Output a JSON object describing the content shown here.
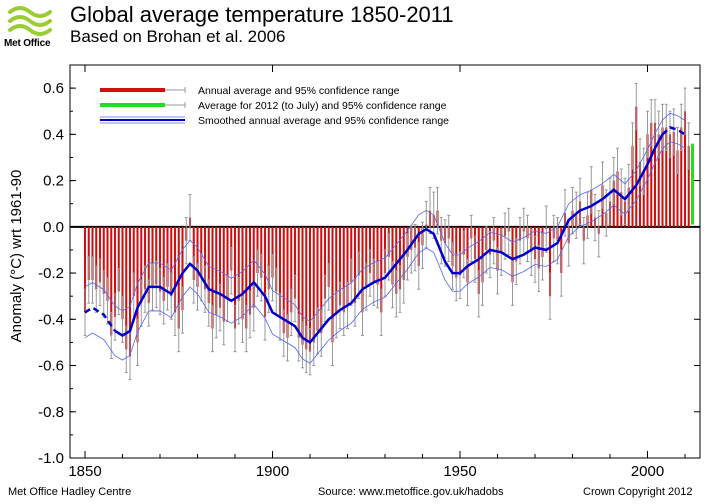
{
  "header": {
    "logo_text": "Met Office",
    "title": "Global average temperature 1850-2011",
    "subtitle": "Based on Brohan et al. 2006"
  },
  "footer": {
    "left": "Met Office Hadley Centre",
    "center": "Source: www.metoffice.gov.uk/hadobs",
    "right": "Crown Copyright 2012"
  },
  "colors": {
    "annual_bar": "#d01010",
    "annual_2012": "#22dd22",
    "smoothed": "#0000cc",
    "smoothed_band": "#5566ee",
    "error_bar": "#999999",
    "logo_green": "#9acd32"
  },
  "chart_data": {
    "type": "bar",
    "title": "Global average temperature 1850-2011",
    "subtitle": "Based on Brohan et al. 2006",
    "ylabel": "Anomaly (°C) wrt 1961-90",
    "xlabel": "",
    "xlim": [
      1846,
      2014
    ],
    "ylim": [
      -1.0,
      0.7
    ],
    "xticks": [
      1850,
      1900,
      1950,
      2000
    ],
    "yticks": [
      -1.0,
      -0.8,
      -0.6,
      -0.4,
      -0.2,
      0.0,
      0.2,
      0.4,
      0.6
    ],
    "ytick_labels": [
      "-1.0",
      "-0.8",
      "-0.6",
      "-0.4",
      "-0.2",
      "0.0",
      "0.2",
      "0.4",
      "0.6"
    ],
    "legend": {
      "placement": "top-left",
      "entries": [
        "Annual average and 95% confidence range",
        "Average for 2012 (to July) and 95% confidence range",
        "Smoothed annual average and 95% confidence range"
      ]
    },
    "annual": {
      "name": "Annual average and 95% confidence range",
      "start_year": 1850,
      "values": [
        -0.37,
        -0.23,
        -0.23,
        -0.27,
        -0.24,
        -0.29,
        -0.32,
        -0.47,
        -0.39,
        -0.28,
        -0.4,
        -0.53,
        -0.56,
        -0.3,
        -0.5,
        -0.33,
        -0.27,
        -0.33,
        -0.26,
        -0.25,
        -0.28,
        -0.32,
        -0.26,
        -0.3,
        -0.37,
        -0.44,
        -0.36,
        -0.06,
        0.04,
        -0.23,
        -0.26,
        -0.22,
        -0.27,
        -0.33,
        -0.44,
        -0.38,
        -0.35,
        -0.41,
        -0.31,
        -0.19,
        -0.44,
        -0.32,
        -0.4,
        -0.44,
        -0.38,
        -0.35,
        -0.2,
        -0.22,
        -0.39,
        -0.27,
        -0.22,
        -0.28,
        -0.39,
        -0.46,
        -0.48,
        -0.37,
        -0.31,
        -0.48,
        -0.51,
        -0.53,
        -0.54,
        -0.5,
        -0.45,
        -0.46,
        -0.31,
        -0.26,
        -0.5,
        -0.38,
        -0.34,
        -0.37,
        -0.34,
        -0.24,
        -0.33,
        -0.21,
        -0.37,
        -0.26,
        -0.2,
        -0.24,
        -0.25,
        -0.37,
        -0.2,
        -0.13,
        -0.25,
        -0.29,
        -0.27,
        -0.23,
        -0.13,
        -0.1,
        -0.09,
        -0.17,
        -0.08,
        0.01,
        0.07,
        0.05,
        0.07,
        -0.06,
        -0.07,
        -0.05,
        -0.17,
        -0.22,
        -0.21,
        -0.12,
        -0.24,
        -0.05,
        -0.14,
        -0.29,
        -0.24,
        -0.1,
        -0.12,
        -0.06,
        -0.19,
        -0.11,
        -0.04,
        -0.02,
        -0.24,
        -0.15,
        -0.06,
        -0.02,
        -0.05,
        -0.11,
        -0.14,
        -0.18,
        -0.13,
        -0.01,
        -0.3,
        -0.05,
        -0.06,
        -0.2,
        0.06,
        -0.07,
        0.07,
        0.05,
        0.11,
        -0.06,
        0.05,
        0.16,
        0.04,
        -0.03,
        0.18,
        0.06,
        0.11,
        0.2,
        0.24,
        0.15,
        0.11,
        0.17,
        0.35,
        0.52,
        0.28,
        0.24,
        0.4,
        0.45,
        0.45,
        0.4,
        0.43,
        0.43,
        0.4,
        0.41,
        0.33,
        0.43,
        0.5,
        0.35
      ],
      "uncertainty": 0.1
    },
    "partial_2012": {
      "name": "Average for 2012 (to July) and 95% confidence range",
      "year": 2012,
      "value": 0.35,
      "ci": [
        0.01,
        0.36
      ]
    },
    "smoothed": {
      "name": "Smoothed annual average and 95% confidence range",
      "x": [
        1850,
        1852,
        1855,
        1858,
        1860,
        1862,
        1864,
        1867,
        1870,
        1873,
        1876,
        1878,
        1880,
        1883,
        1886,
        1889,
        1892,
        1895,
        1898,
        1900,
        1903,
        1906,
        1908,
        1910,
        1912,
        1915,
        1918,
        1921,
        1924,
        1927,
        1930,
        1933,
        1936,
        1939,
        1941,
        1943,
        1946,
        1948,
        1950,
        1952,
        1955,
        1958,
        1961,
        1964,
        1967,
        1970,
        1973,
        1976,
        1979,
        1982,
        1985,
        1988,
        1991,
        1994,
        1997,
        2000,
        2002,
        2004,
        2006,
        2008,
        2010
      ],
      "y": [
        -0.37,
        -0.35,
        -0.38,
        -0.45,
        -0.47,
        -0.45,
        -0.35,
        -0.26,
        -0.26,
        -0.29,
        -0.2,
        -0.16,
        -0.19,
        -0.27,
        -0.29,
        -0.32,
        -0.29,
        -0.24,
        -0.3,
        -0.37,
        -0.4,
        -0.43,
        -0.48,
        -0.5,
        -0.46,
        -0.4,
        -0.36,
        -0.33,
        -0.27,
        -0.24,
        -0.22,
        -0.16,
        -0.1,
        -0.03,
        -0.01,
        -0.03,
        -0.15,
        -0.2,
        -0.2,
        -0.17,
        -0.14,
        -0.1,
        -0.11,
        -0.14,
        -0.12,
        -0.09,
        -0.1,
        -0.07,
        0.03,
        0.07,
        0.09,
        0.12,
        0.16,
        0.12,
        0.18,
        0.27,
        0.34,
        0.4,
        0.43,
        0.42,
        0.4
      ],
      "dashed_start_until": 1858,
      "dashed_end_from": 2004,
      "band_halfwidth_start": 0.11,
      "band_halfwidth_end": 0.06
    }
  }
}
